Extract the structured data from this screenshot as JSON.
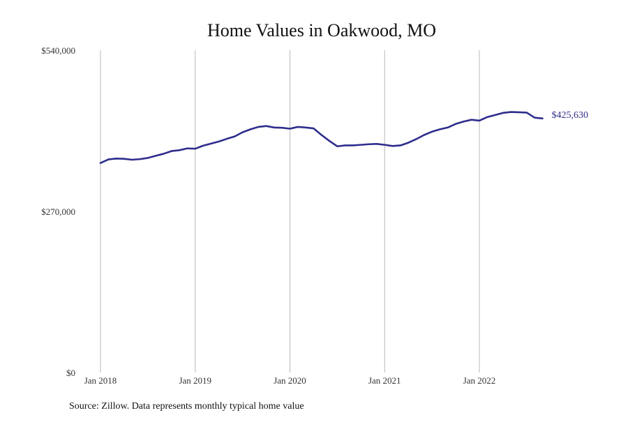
{
  "chart_data": {
    "type": "line",
    "title": "Home Values in Oakwood, MO",
    "source": "Source: Zillow. Data represents monthly typical home value",
    "ylim": [
      0,
      540000
    ],
    "y_ticks": [
      {
        "value": 0,
        "label": "$0"
      },
      {
        "value": 270000,
        "label": "$270,000"
      },
      {
        "value": 540000,
        "label": "$540,000"
      }
    ],
    "x_ticks": [
      {
        "date": "2018-01",
        "label": "Jan 2018"
      },
      {
        "date": "2019-01",
        "label": "Jan 2019"
      },
      {
        "date": "2020-01",
        "label": "Jan 2020"
      },
      {
        "date": "2021-01",
        "label": "Jan 2021"
      },
      {
        "date": "2022-01",
        "label": "Jan 2022"
      }
    ],
    "grid": "vertical",
    "line_color": "#2e2d8c",
    "end_label": "$425,630",
    "series": [
      {
        "x": [
          "2018-01",
          "2018-02",
          "2018-03",
          "2018-04",
          "2018-05",
          "2018-06",
          "2018-07",
          "2018-08",
          "2018-09",
          "2018-10",
          "2018-11",
          "2018-12",
          "2019-01",
          "2019-02",
          "2019-03",
          "2019-04",
          "2019-05",
          "2019-06",
          "2019-07",
          "2019-08",
          "2019-09",
          "2019-10",
          "2019-11",
          "2019-12",
          "2020-01",
          "2020-02",
          "2020-03",
          "2020-04",
          "2020-05",
          "2020-06",
          "2020-07",
          "2020-08",
          "2020-09",
          "2020-10",
          "2020-11",
          "2020-12",
          "2021-01",
          "2021-02",
          "2021-03",
          "2021-04",
          "2021-05",
          "2021-06",
          "2021-07",
          "2021-08",
          "2021-09",
          "2021-10",
          "2021-11",
          "2021-12",
          "2022-01",
          "2022-02",
          "2022-03",
          "2022-04",
          "2022-05",
          "2022-06",
          "2022-07",
          "2022-08",
          "2022-09"
        ],
        "values": [
          351000,
          357000,
          358500,
          358000,
          356500,
          357500,
          359500,
          363000,
          366500,
          371000,
          372500,
          375500,
          375000,
          380000,
          383500,
          387000,
          391500,
          395500,
          402500,
          407500,
          411500,
          413000,
          410500,
          410000,
          408500,
          411500,
          410500,
          409000,
          398000,
          388000,
          379000,
          380500,
          380500,
          381500,
          382500,
          383000,
          381500,
          379500,
          380500,
          385000,
          391000,
          398000,
          403500,
          407500,
          410500,
          416500,
          420500,
          423500,
          422000,
          428000,
          431500,
          435000,
          436500,
          436000,
          435500,
          427000,
          425630
        ]
      }
    ]
  }
}
